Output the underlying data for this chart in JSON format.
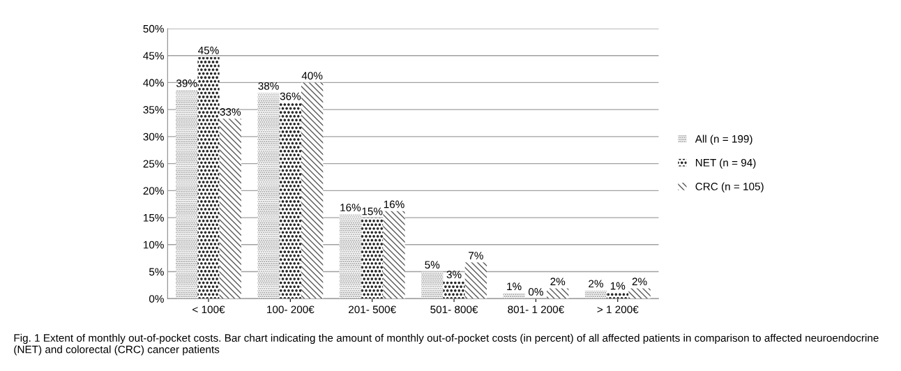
{
  "chart_data": {
    "type": "bar",
    "categories": [
      "< 100€",
      "100- 200€",
      "201- 500€",
      "501- 800€",
      "801- 1 200€",
      "> 1 200€"
    ],
    "series": [
      {
        "name": "All (n = 199)",
        "color": "#8c8c8c",
        "values": [
          38.6,
          38.1,
          15.6,
          5.0,
          1.0,
          1.5
        ],
        "value_labels": [
          "39%",
          "38%",
          "16%",
          "5%",
          "1%",
          "2%"
        ]
      },
      {
        "name": "NET (n = 94)",
        "color": "#1a1a1a",
        "values": [
          44.7,
          36.2,
          14.9,
          3.2,
          0,
          1.1
        ],
        "value_labels": [
          "45%",
          "36%",
          "15%",
          "3%",
          "0%",
          "1%"
        ]
      },
      {
        "name": "CRC (n = 105)",
        "color": "#595959",
        "values": [
          33.3,
          40.0,
          16.2,
          6.7,
          1.9,
          1.9
        ],
        "value_labels": [
          "33%",
          "40%",
          "16%",
          "7%",
          "2%",
          "2%"
        ]
      }
    ],
    "ylim": [
      0,
      50
    ],
    "yticks": [
      {
        "value": 0,
        "label": "0%"
      },
      {
        "value": 5,
        "label": "5%"
      },
      {
        "value": 10,
        "label": "10%"
      },
      {
        "value": 15,
        "label": "15%"
      },
      {
        "value": 20,
        "label": "20%"
      },
      {
        "value": 25,
        "label": "25%"
      },
      {
        "value": 30,
        "label": "30%"
      },
      {
        "value": 35,
        "label": "35%"
      },
      {
        "value": 40,
        "label": "40%"
      },
      {
        "value": 45,
        "label": "45%"
      },
      {
        "value": 50,
        "label": "50%"
      }
    ],
    "grid": "y",
    "legend": "right",
    "annotations": [
      "Fig. 1 Extent of monthly out-of-pocket costs. Bar chart indicating the amount of monthly out-of-pocket costs (in percent) of all affected patients in comparison to affected neuroendocrine (NET) and colorectal (CRC) cancer patients"
    ]
  }
}
